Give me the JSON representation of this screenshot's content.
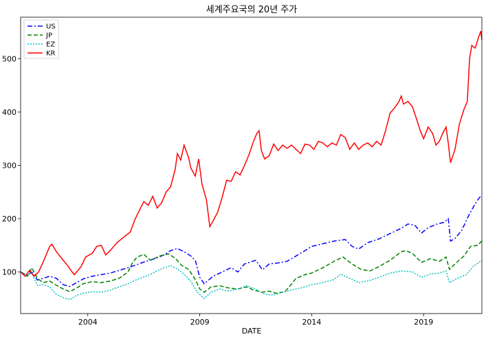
{
  "chart_data": {
    "type": "line",
    "title": "세계주요국의 20년 주가",
    "xlabel": "DATE",
    "ylabel": "",
    "x_ticks": [
      {
        "label": "2004",
        "year": 2004
      },
      {
        "label": "2009",
        "year": 2009
      },
      {
        "label": "2014",
        "year": 2014
      },
      {
        "label": "2019",
        "year": 2019
      }
    ],
    "y_ticks": [
      100,
      200,
      300,
      400,
      500
    ],
    "xlim": [
      2001.0,
      2021.6
    ],
    "ylim": [
      22,
      578
    ],
    "grid": false,
    "legend_position": "top-left",
    "series": [
      {
        "name": "US",
        "color": "#0000ff",
        "dash": "7,3,2,3",
        "points": [
          [
            2001.0,
            100
          ],
          [
            2001.3,
            93
          ],
          [
            2001.5,
            100
          ],
          [
            2001.75,
            85
          ],
          [
            2002.0,
            88
          ],
          [
            2002.3,
            92
          ],
          [
            2002.6,
            88
          ],
          [
            2002.9,
            76
          ],
          [
            2003.2,
            73
          ],
          [
            2003.5,
            80
          ],
          [
            2003.8,
            87
          ],
          [
            2004.2,
            92
          ],
          [
            2004.6,
            95
          ],
          [
            2005.0,
            98
          ],
          [
            2005.4,
            103
          ],
          [
            2005.8,
            108
          ],
          [
            2006.2,
            114
          ],
          [
            2006.6,
            120
          ],
          [
            2007.0,
            125
          ],
          [
            2007.4,
            132
          ],
          [
            2007.7,
            140
          ],
          [
            2008.0,
            144
          ],
          [
            2008.3,
            138
          ],
          [
            2008.6,
            130
          ],
          [
            2008.8,
            122
          ],
          [
            2009.0,
            90
          ],
          [
            2009.2,
            78
          ],
          [
            2009.4,
            85
          ],
          [
            2009.6,
            92
          ],
          [
            2010.0,
            100
          ],
          [
            2010.4,
            108
          ],
          [
            2010.7,
            100
          ],
          [
            2011.0,
            115
          ],
          [
            2011.5,
            122
          ],
          [
            2011.8,
            104
          ],
          [
            2012.1,
            115
          ],
          [
            2012.5,
            117
          ],
          [
            2012.9,
            120
          ],
          [
            2013.3,
            130
          ],
          [
            2013.7,
            140
          ],
          [
            2014.0,
            148
          ],
          [
            2014.5,
            153
          ],
          [
            2015.0,
            158
          ],
          [
            2015.5,
            161
          ],
          [
            2015.8,
            148
          ],
          [
            2016.1,
            143
          ],
          [
            2016.5,
            155
          ],
          [
            2017.0,
            162
          ],
          [
            2017.5,
            172
          ],
          [
            2018.0,
            182
          ],
          [
            2018.3,
            190
          ],
          [
            2018.6,
            188
          ],
          [
            2018.9,
            173
          ],
          [
            2019.2,
            183
          ],
          [
            2019.6,
            190
          ],
          [
            2019.9,
            193
          ],
          [
            2020.1,
            200
          ],
          [
            2020.2,
            158
          ],
          [
            2020.4,
            163
          ],
          [
            2020.7,
            178
          ],
          [
            2021.0,
            205
          ],
          [
            2021.3,
            228
          ],
          [
            2021.5,
            240
          ],
          [
            2021.6,
            243
          ]
        ]
      },
      {
        "name": "JP",
        "color": "#008000",
        "dash": "6,3",
        "points": [
          [
            2001.0,
            100
          ],
          [
            2001.3,
            92
          ],
          [
            2001.5,
            108
          ],
          [
            2001.75,
            88
          ],
          [
            2002.0,
            80
          ],
          [
            2002.3,
            83
          ],
          [
            2002.6,
            75
          ],
          [
            2002.9,
            68
          ],
          [
            2003.2,
            63
          ],
          [
            2003.5,
            70
          ],
          [
            2003.8,
            78
          ],
          [
            2004.2,
            82
          ],
          [
            2004.6,
            80
          ],
          [
            2005.0,
            83
          ],
          [
            2005.4,
            88
          ],
          [
            2005.8,
            100
          ],
          [
            2006.0,
            118
          ],
          [
            2006.2,
            128
          ],
          [
            2006.5,
            133
          ],
          [
            2006.8,
            122
          ],
          [
            2007.2,
            130
          ],
          [
            2007.6,
            134
          ],
          [
            2007.9,
            126
          ],
          [
            2008.2,
            112
          ],
          [
            2008.5,
            105
          ],
          [
            2008.8,
            86
          ],
          [
            2009.0,
            68
          ],
          [
            2009.2,
            62
          ],
          [
            2009.5,
            72
          ],
          [
            2009.9,
            74
          ],
          [
            2010.3,
            70
          ],
          [
            2010.7,
            68
          ],
          [
            2011.1,
            72
          ],
          [
            2011.4,
            66
          ],
          [
            2011.8,
            62
          ],
          [
            2012.1,
            64
          ],
          [
            2012.4,
            60
          ],
          [
            2012.8,
            63
          ],
          [
            2013.0,
            72
          ],
          [
            2013.3,
            88
          ],
          [
            2013.7,
            95
          ],
          [
            2014.0,
            98
          ],
          [
            2014.5,
            108
          ],
          [
            2015.0,
            120
          ],
          [
            2015.4,
            128
          ],
          [
            2015.8,
            115
          ],
          [
            2016.2,
            105
          ],
          [
            2016.6,
            102
          ],
          [
            2017.0,
            110
          ],
          [
            2017.5,
            122
          ],
          [
            2018.0,
            138
          ],
          [
            2018.2,
            140
          ],
          [
            2018.5,
            135
          ],
          [
            2018.9,
            118
          ],
          [
            2019.3,
            125
          ],
          [
            2019.7,
            120
          ],
          [
            2020.0,
            128
          ],
          [
            2020.15,
            105
          ],
          [
            2020.4,
            115
          ],
          [
            2020.8,
            130
          ],
          [
            2021.1,
            148
          ],
          [
            2021.4,
            150
          ],
          [
            2021.6,
            158
          ]
        ]
      },
      {
        "name": "EZ",
        "color": "#00bfbf",
        "dash": "2,2",
        "points": [
          [
            2001.0,
            100
          ],
          [
            2001.3,
            95
          ],
          [
            2001.5,
            98
          ],
          [
            2001.75,
            75
          ],
          [
            2002.0,
            76
          ],
          [
            2002.3,
            72
          ],
          [
            2002.6,
            58
          ],
          [
            2002.9,
            52
          ],
          [
            2003.2,
            48
          ],
          [
            2003.5,
            56
          ],
          [
            2003.8,
            60
          ],
          [
            2004.2,
            63
          ],
          [
            2004.6,
            62
          ],
          [
            2005.0,
            66
          ],
          [
            2005.4,
            72
          ],
          [
            2005.8,
            78
          ],
          [
            2006.2,
            86
          ],
          [
            2006.6,
            92
          ],
          [
            2007.0,
            100
          ],
          [
            2007.4,
            108
          ],
          [
            2007.7,
            112
          ],
          [
            2008.0,
            106
          ],
          [
            2008.3,
            96
          ],
          [
            2008.6,
            82
          ],
          [
            2008.9,
            62
          ],
          [
            2009.2,
            50
          ],
          [
            2009.5,
            62
          ],
          [
            2009.9,
            68
          ],
          [
            2010.3,
            64
          ],
          [
            2010.7,
            68
          ],
          [
            2011.1,
            74
          ],
          [
            2011.5,
            68
          ],
          [
            2011.9,
            58
          ],
          [
            2012.3,
            57
          ],
          [
            2012.7,
            62
          ],
          [
            2013.1,
            66
          ],
          [
            2013.5,
            70
          ],
          [
            2014.0,
            76
          ],
          [
            2014.5,
            80
          ],
          [
            2015.0,
            86
          ],
          [
            2015.3,
            96
          ],
          [
            2015.7,
            88
          ],
          [
            2016.1,
            80
          ],
          [
            2016.6,
            84
          ],
          [
            2017.0,
            90
          ],
          [
            2017.5,
            98
          ],
          [
            2018.0,
            102
          ],
          [
            2018.5,
            100
          ],
          [
            2018.9,
            90
          ],
          [
            2019.3,
            96
          ],
          [
            2019.7,
            98
          ],
          [
            2020.0,
            102
          ],
          [
            2020.15,
            80
          ],
          [
            2020.5,
            88
          ],
          [
            2020.9,
            95
          ],
          [
            2021.2,
            110
          ],
          [
            2021.6,
            122
          ]
        ]
      },
      {
        "name": "KR",
        "color": "#ff0000",
        "dash": "",
        "points": [
          [
            2001.0,
            100
          ],
          [
            2001.2,
            92
          ],
          [
            2001.4,
            103
          ],
          [
            2001.6,
            92
          ],
          [
            2001.8,
            100
          ],
          [
            2002.0,
            118
          ],
          [
            2002.3,
            148
          ],
          [
            2002.4,
            152
          ],
          [
            2002.6,
            138
          ],
          [
            2002.9,
            122
          ],
          [
            2003.1,
            112
          ],
          [
            2003.3,
            100
          ],
          [
            2003.4,
            95
          ],
          [
            2003.7,
            110
          ],
          [
            2003.9,
            128
          ],
          [
            2004.2,
            135
          ],
          [
            2004.4,
            148
          ],
          [
            2004.6,
            150
          ],
          [
            2004.8,
            132
          ],
          [
            2005.0,
            140
          ],
          [
            2005.3,
            155
          ],
          [
            2005.6,
            165
          ],
          [
            2005.9,
            175
          ],
          [
            2006.1,
            198
          ],
          [
            2006.3,
            215
          ],
          [
            2006.5,
            232
          ],
          [
            2006.7,
            225
          ],
          [
            2006.9,
            242
          ],
          [
            2007.1,
            220
          ],
          [
            2007.3,
            230
          ],
          [
            2007.5,
            250
          ],
          [
            2007.7,
            260
          ],
          [
            2007.9,
            292
          ],
          [
            2008.0,
            322
          ],
          [
            2008.15,
            310
          ],
          [
            2008.3,
            338
          ],
          [
            2008.5,
            315
          ],
          [
            2008.6,
            295
          ],
          [
            2008.8,
            280
          ],
          [
            2008.95,
            312
          ],
          [
            2009.1,
            265
          ],
          [
            2009.3,
            235
          ],
          [
            2009.45,
            185
          ],
          [
            2009.6,
            196
          ],
          [
            2009.8,
            212
          ],
          [
            2010.0,
            240
          ],
          [
            2010.2,
            272
          ],
          [
            2010.4,
            270
          ],
          [
            2010.6,
            288
          ],
          [
            2010.8,
            282
          ],
          [
            2011.0,
            300
          ],
          [
            2011.2,
            320
          ],
          [
            2011.4,
            345
          ],
          [
            2011.55,
            360
          ],
          [
            2011.65,
            365
          ],
          [
            2011.75,
            328
          ],
          [
            2011.9,
            312
          ],
          [
            2012.1,
            318
          ],
          [
            2012.3,
            340
          ],
          [
            2012.5,
            328
          ],
          [
            2012.7,
            338
          ],
          [
            2012.9,
            332
          ],
          [
            2013.1,
            338
          ],
          [
            2013.3,
            330
          ],
          [
            2013.5,
            322
          ],
          [
            2013.7,
            340
          ],
          [
            2013.9,
            338
          ],
          [
            2014.1,
            330
          ],
          [
            2014.3,
            345
          ],
          [
            2014.5,
            342
          ],
          [
            2014.7,
            335
          ],
          [
            2014.9,
            342
          ],
          [
            2015.1,
            338
          ],
          [
            2015.3,
            358
          ],
          [
            2015.5,
            352
          ],
          [
            2015.7,
            330
          ],
          [
            2015.9,
            342
          ],
          [
            2016.1,
            330
          ],
          [
            2016.3,
            338
          ],
          [
            2016.5,
            342
          ],
          [
            2016.7,
            335
          ],
          [
            2016.9,
            345
          ],
          [
            2017.1,
            338
          ],
          [
            2017.3,
            365
          ],
          [
            2017.5,
            398
          ],
          [
            2017.7,
            408
          ],
          [
            2017.9,
            420
          ],
          [
            2018.0,
            430
          ],
          [
            2018.1,
            415
          ],
          [
            2018.3,
            420
          ],
          [
            2018.5,
            410
          ],
          [
            2018.7,
            385
          ],
          [
            2018.85,
            365
          ],
          [
            2019.0,
            350
          ],
          [
            2019.2,
            372
          ],
          [
            2019.4,
            360
          ],
          [
            2019.55,
            338
          ],
          [
            2019.7,
            345
          ],
          [
            2019.85,
            360
          ],
          [
            2020.0,
            372
          ],
          [
            2020.1,
            342
          ],
          [
            2020.2,
            305
          ],
          [
            2020.4,
            330
          ],
          [
            2020.6,
            378
          ],
          [
            2020.8,
            405
          ],
          [
            2020.95,
            420
          ],
          [
            2021.05,
            500
          ],
          [
            2021.15,
            525
          ],
          [
            2021.3,
            520
          ],
          [
            2021.45,
            540
          ],
          [
            2021.55,
            552
          ],
          [
            2021.6,
            535
          ]
        ]
      }
    ]
  }
}
